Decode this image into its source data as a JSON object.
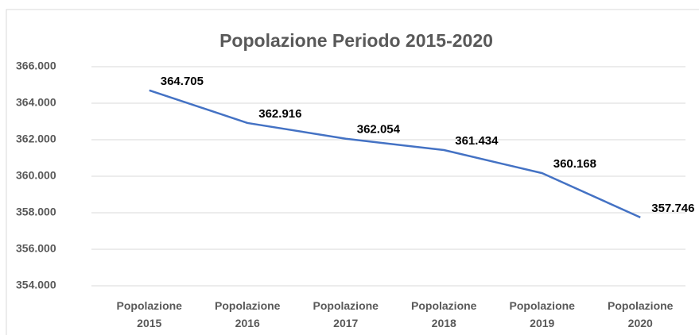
{
  "chart_data": {
    "type": "line",
    "title": "Popolazione Periodo 2015-2020",
    "categories": [
      "Popolazione 2015",
      "Popolazione 2016",
      "Popolazione 2017",
      "Popolazione 2018",
      "Popolazione 2019",
      "Popolazione 2020"
    ],
    "values": [
      364705,
      362916,
      362054,
      361434,
      360168,
      357746
    ],
    "value_labels": [
      "364.705",
      "362.916",
      "362.054",
      "361.434",
      "360.168",
      "357.746"
    ],
    "color": "#4472c4",
    "ylim": [
      354000,
      366000
    ],
    "yticks": [
      {
        "value": 354000,
        "label": "354.000"
      },
      {
        "value": 356000,
        "label": "356.000"
      },
      {
        "value": 358000,
        "label": "358.000"
      },
      {
        "value": 360000,
        "label": "360.000"
      },
      {
        "value": 362000,
        "label": "362.000"
      },
      {
        "value": 364000,
        "label": "364.000"
      },
      {
        "value": 366000,
        "label": "366.000"
      }
    ],
    "grid": true
  }
}
